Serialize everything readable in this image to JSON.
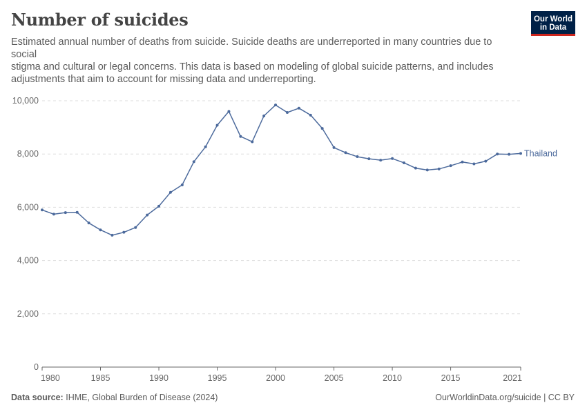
{
  "header": {
    "title": "Number of suicides",
    "subtitle_lines": [
      "Estimated annual number of deaths from suicide. Suicide deaths are underreported in many countries due to social",
      "stigma and cultural or legal concerns. This data is based on modeling of global suicide patterns, and includes",
      "adjustments that aim to account for missing data and underreporting."
    ],
    "logo_line1": "Our World",
    "logo_line2": "in Data"
  },
  "footer": {
    "source_label": "Data source:",
    "source_text": "IHME, Global Burden of Disease (2024)",
    "credit": "OurWorldinData.org/suicide | CC BY"
  },
  "colors": {
    "series": "#4c6a9c",
    "grid": "#dddddd",
    "axis": "#666666",
    "logo_bg": "#002147",
    "logo_accent": "#ce261e"
  },
  "chart_data": {
    "type": "line",
    "title": "Number of suicides",
    "xlabel": "",
    "ylabel": "",
    "xlim": [
      1980,
      2021
    ],
    "ylim": [
      0,
      10000
    ],
    "x_ticks": [
      1980,
      1985,
      1990,
      1995,
      2000,
      2005,
      2010,
      2015,
      2021
    ],
    "y_ticks": [
      0,
      2000,
      4000,
      6000,
      8000,
      10000
    ],
    "y_tick_labels": [
      "0",
      "2,000",
      "4,000",
      "6,000",
      "8,000",
      "10,000"
    ],
    "grid": "horizontal dashed",
    "series": [
      {
        "name": "Thailand",
        "x": [
          1980,
          1981,
          1982,
          1983,
          1984,
          1985,
          1986,
          1987,
          1988,
          1989,
          1990,
          1991,
          1992,
          1993,
          1994,
          1995,
          1996,
          1997,
          1998,
          1999,
          2000,
          2001,
          2002,
          2003,
          2004,
          2005,
          2006,
          2007,
          2008,
          2009,
          2010,
          2011,
          2012,
          2013,
          2014,
          2015,
          2016,
          2017,
          2018,
          2019,
          2020,
          2021
        ],
        "values": [
          5900,
          5740,
          5800,
          5810,
          5410,
          5150,
          4950,
          5060,
          5240,
          5710,
          6040,
          6560,
          6840,
          7710,
          8270,
          9080,
          9600,
          8660,
          8460,
          9430,
          9840,
          9560,
          9720,
          9460,
          8960,
          8240,
          8050,
          7900,
          7820,
          7770,
          7830,
          7670,
          7470,
          7400,
          7440,
          7560,
          7700,
          7630,
          7730,
          8000,
          7990,
          8020
        ]
      }
    ]
  }
}
